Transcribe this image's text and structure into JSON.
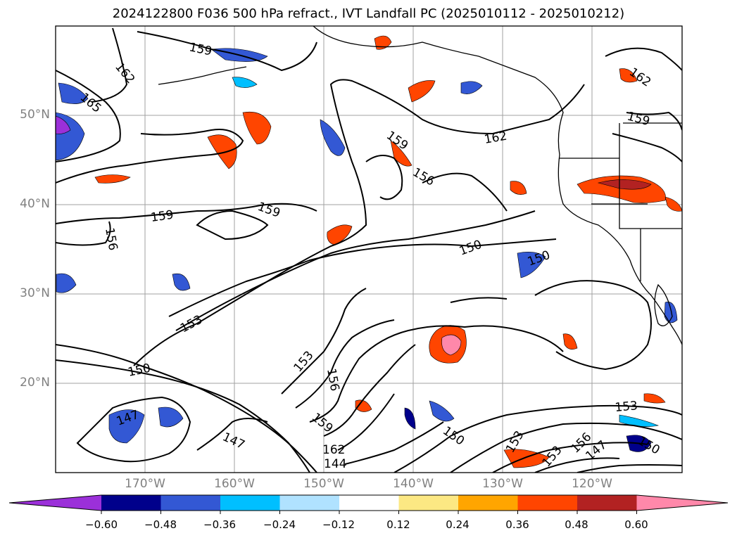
{
  "title": "2024122800 F036 500 hPa refract., IVT Landfall PC (2025010112 - 2025010212)",
  "latitude_labels": [
    "50°N",
    "40°N",
    "30°N",
    "20°N"
  ],
  "longitude_labels": [
    "170°W",
    "160°W",
    "150°W",
    "140°W",
    "130°W",
    "120°W"
  ],
  "contour_labels": [
    "159",
    "162",
    "165",
    "162",
    "159",
    "162",
    "159",
    "156",
    "159",
    "156",
    "159",
    "150",
    "150",
    "153",
    "150",
    "153",
    "156",
    "159",
    "162",
    "144",
    "147",
    "147",
    "150",
    "153",
    "153",
    "156",
    "147",
    "153",
    "150"
  ],
  "colorbar": {
    "ticks": [
      "−0.60",
      "−0.48",
      "−0.36",
      "−0.24",
      "−0.12",
      "0.12",
      "0.24",
      "0.36",
      "0.48",
      "0.60"
    ],
    "colors": [
      "#9b30d9",
      "#00008b",
      "#3358d4",
      "#00bfff",
      "#b0e2ff",
      "#ffffff",
      "#fce883",
      "#ffa500",
      "#ff4500",
      "#b22222",
      "#ff88aa"
    ]
  }
}
